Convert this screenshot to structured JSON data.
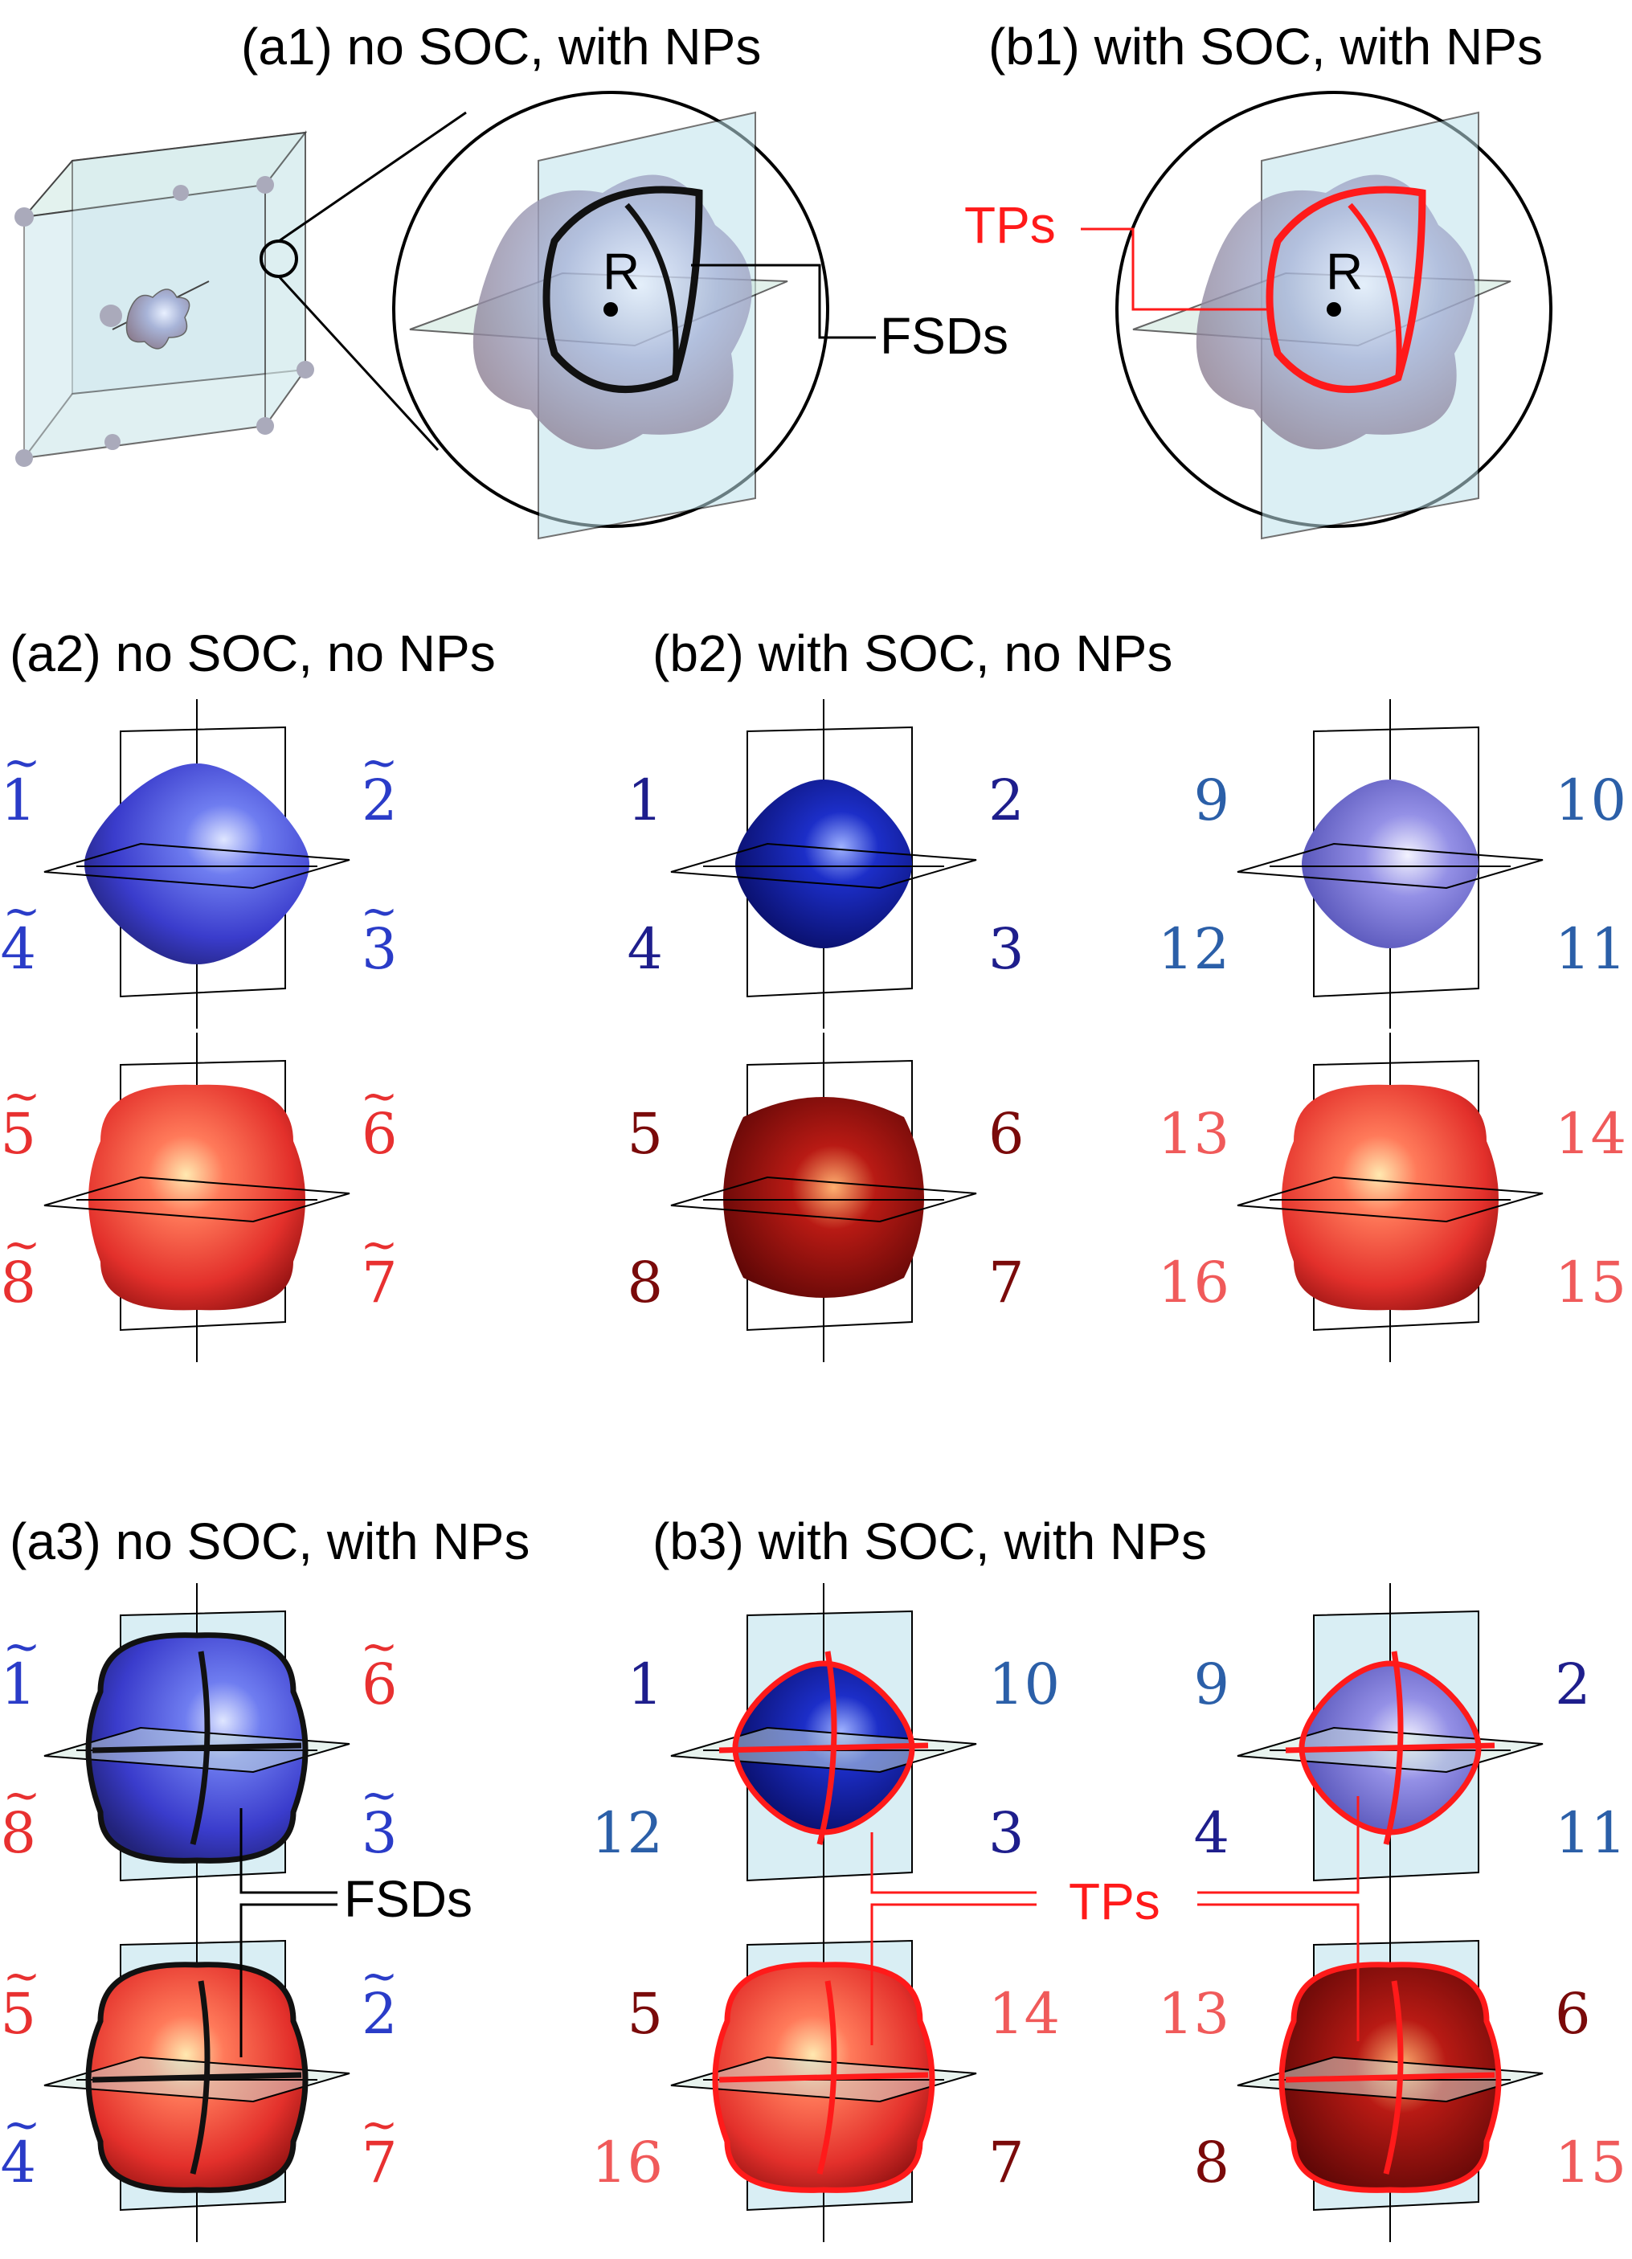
{
  "figure": {
    "panels": {
      "a1": {
        "title": "(a1) no SOC, with NPs",
        "point": "R",
        "annotation": "FSDs"
      },
      "b1": {
        "title": "(b1) with SOC, with NPs",
        "point": "R",
        "annotation": "TPs"
      },
      "a2": {
        "title": "(a2) no SOC, no NPs"
      },
      "b2": {
        "title": "(b2) with SOC, no NPs"
      },
      "a3": {
        "title": "(a3) no SOC, with NPs",
        "annotation": "FSDs"
      },
      "b3": {
        "title": "(b3) with SOC, with NPs",
        "annotation": "TPs"
      }
    },
    "labels": {
      "a2_top": [
        "1",
        "2",
        "4",
        "3"
      ],
      "a2_bottom": [
        "5",
        "6",
        "8",
        "7"
      ],
      "b2_top_left": [
        "1",
        "2",
        "4",
        "3"
      ],
      "b2_bottom_left": [
        "5",
        "6",
        "8",
        "7"
      ],
      "b2_top_right": [
        "9",
        "10",
        "12",
        "11"
      ],
      "b2_bottom_right": [
        "13",
        "14",
        "16",
        "15"
      ],
      "a3_top": [
        "1",
        "6",
        "8",
        "3"
      ],
      "a3_bottom": [
        "5",
        "2",
        "4",
        "7"
      ],
      "b3_top_left": [
        "1",
        "10",
        "12",
        "3"
      ],
      "b3_bottom_left": [
        "5",
        "14",
        "16",
        "7"
      ],
      "b3_top_right": [
        "9",
        "2",
        "4",
        "11"
      ],
      "b3_bottom_right": [
        "13",
        "6",
        "8",
        "15"
      ]
    },
    "colors": {
      "blue_dark": "#1e1e8c",
      "blue_mid": "#2a3cc8",
      "blue_light": "#2b5fa8",
      "red_dark": "#7a0a0a",
      "red_mid": "#e83030",
      "red_light": "#f05a5a",
      "tp_red": "#ff1a1a",
      "plane": "#bfe3ec"
    }
  }
}
